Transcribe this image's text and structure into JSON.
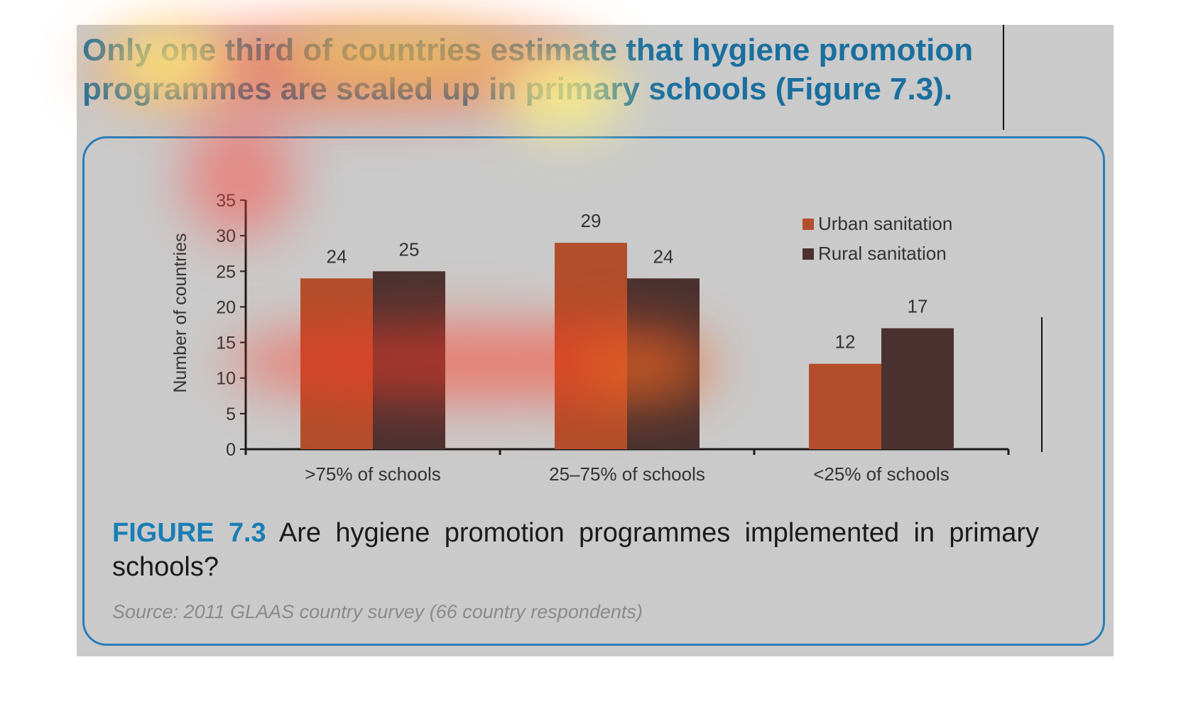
{
  "headline": "Only one third of countries estimate that hygiene promotion programmes are scaled up in primary schools (Figure 7.3).",
  "caption": {
    "label": "FIGURE 7.3",
    "text": " Are hygiene promotion programmes implemented in primary schools?"
  },
  "source": "Source: 2011 GLAAS country survey (66 country respondents)",
  "colors": {
    "urban": "#b24e2c",
    "rural": "#4b3230",
    "accent": "#1a7db5"
  },
  "chart_data": {
    "type": "bar",
    "categories": [
      ">75% of schools",
      "25–75% of schools",
      "<25% of schools"
    ],
    "series": [
      {
        "name": "Urban sanitation",
        "values": [
          24,
          29,
          12
        ]
      },
      {
        "name": "Rural sanitation",
        "values": [
          25,
          24,
          17
        ]
      }
    ],
    "ylabel": "Number of countries",
    "ylim": [
      0,
      35
    ],
    "yticks": [
      0,
      5,
      10,
      15,
      20,
      25,
      30,
      35
    ],
    "data_labels": true,
    "legend_position": "top-right",
    "grid": false
  }
}
